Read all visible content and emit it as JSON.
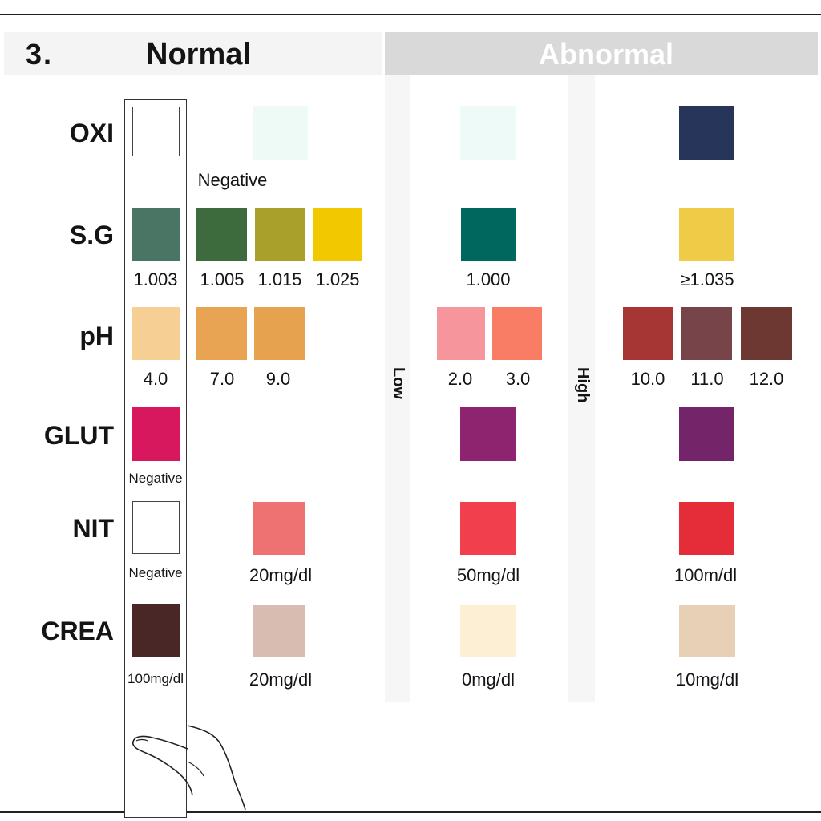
{
  "header": {
    "step": "3.",
    "normal_label": "Normal",
    "abnormal_label": "Abnormal",
    "low_label": "Low",
    "high_label": "High"
  },
  "rows": {
    "oxi": {
      "label": "OXI"
    },
    "sg": {
      "label": "S.G"
    },
    "ph": {
      "label": "pH"
    },
    "glut": {
      "label": "GLUT"
    },
    "nit": {
      "label": "NIT"
    },
    "crea": {
      "label": "CREA"
    }
  },
  "strip": {
    "oxi": {
      "color": "#ffffff",
      "caption": ""
    },
    "sg": {
      "color": "#4a7565",
      "caption": "1.003"
    },
    "ph": {
      "color": "#f5cf94",
      "caption": "4.0"
    },
    "glut": {
      "color": "#d8185e",
      "caption": "Negative"
    },
    "nit": {
      "color": "#ffffff",
      "caption": "Negative"
    },
    "crea": {
      "color": "#4a2727",
      "caption": "100mg/dl"
    }
  },
  "normal": {
    "oxi": {
      "color": "#eefaf6",
      "caption": "Negative"
    },
    "sg": [
      {
        "color": "#3d6b3e",
        "caption": "1.005"
      },
      {
        "color": "#a8a02a",
        "caption": "1.015"
      },
      {
        "color": "#f2c800",
        "caption": "1.025"
      }
    ],
    "ph": [
      {
        "color": "#e8a452",
        "caption": "7.0"
      },
      {
        "color": "#e6a24e",
        "caption": "9.0"
      }
    ],
    "nit": {
      "color": "#ee7272",
      "caption": "20mg/dl"
    },
    "crea": {
      "color": "#d8bcb1",
      "caption": "20mg/dl"
    }
  },
  "low": {
    "oxi": {
      "color": "#eefaf8",
      "caption": ""
    },
    "sg": {
      "color": "#00675f",
      "caption": "1.000"
    },
    "ph": [
      {
        "color": "#f7959c",
        "caption": "2.0"
      },
      {
        "color": "#f97c64",
        "caption": "3.0"
      }
    ],
    "glut": {
      "color": "#8e2370",
      "caption": ""
    },
    "nit": {
      "color": "#f23f4e",
      "caption": "50mg/dl"
    },
    "crea": {
      "color": "#fcefd3",
      "caption": "0mg/dl"
    }
  },
  "high": {
    "oxi": {
      "color": "#27355a",
      "caption": ""
    },
    "sg": {
      "color": "#f0cb47",
      "caption": "≥1.035"
    },
    "ph": [
      {
        "color": "#a63634",
        "caption": "10.0"
      },
      {
        "color": "#774449",
        "caption": "11.0"
      },
      {
        "color": "#6e3832",
        "caption": "12.0"
      }
    ],
    "glut": {
      "color": "#742569",
      "caption": ""
    },
    "nit": {
      "color": "#e42d38",
      "caption": "100m/dl"
    },
    "crea": {
      "color": "#e7d0b6",
      "caption": "10mg/dl"
    }
  },
  "colors": {
    "header_normal_bg": "#f4f4f4",
    "header_abnormal_bg": "#d9d9d9",
    "band_bg": "#f6f6f6"
  }
}
